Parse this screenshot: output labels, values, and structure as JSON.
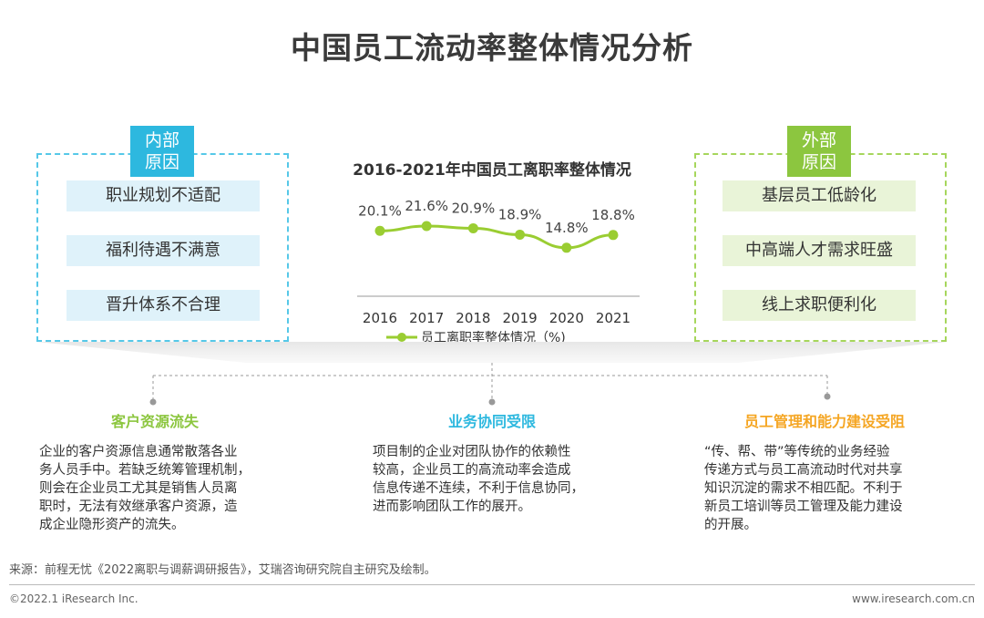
{
  "page": {
    "title": "中国员工流动率整体情况分析"
  },
  "left_panel": {
    "tag": [
      "内部",
      "原因"
    ],
    "items": [
      "职业规划不适配",
      "福利待遇不满意",
      "晋升体系不合理"
    ]
  },
  "right_panel": {
    "tag": [
      "外部",
      "原因"
    ],
    "items": [
      "基层员工低龄化",
      "中高端人才需求旺盛",
      "线上求职便利化"
    ]
  },
  "chart_data": {
    "type": "line",
    "title": "2016-2021年中国员工离职率整体情况",
    "categories": [
      "2016",
      "2017",
      "2018",
      "2019",
      "2020",
      "2021"
    ],
    "series": [
      {
        "name": "员工离职率整体情况（%)",
        "values": [
          20.1,
          21.6,
          20.9,
          18.9,
          14.8,
          18.8
        ]
      }
    ],
    "data_labels": [
      "20.1%",
      "21.6%",
      "20.9%",
      "18.9%",
      "14.8%",
      "18.8%"
    ],
    "xlabel": "",
    "ylabel": "",
    "ylim": [
      0,
      30
    ],
    "legend": "bottom",
    "color": "#9acd32"
  },
  "sections": [
    {
      "heading": "客户资源流失",
      "lines": [
        "企业的客户资源信息通常散落各业",
        "务人员手中。若缺乏统筹管理机制，",
        "则会在企业员工尤其是销售人员离",
        "职时，无法有效继承客户资源，造",
        "成企业隐形资产的流失。"
      ]
    },
    {
      "heading": "业务协同受限",
      "lines": [
        "项目制的企业对团队协作的依赖性",
        "较高，企业员工的高流动率会造成",
        "信息传递不连续，不利于信息协同，",
        "进而影响团队工作的展开。"
      ]
    },
    {
      "heading": "员工管理和能力建设受阻",
      "lines": [
        "“传、帮、带”等传统的业务经验",
        "传递方式与员工高流动时代对共享",
        "知识沉淀的需求不相匹配。不利于",
        "新员工培训等员工管理及能力建设",
        "的开展。"
      ]
    }
  ],
  "footer": {
    "source": "来源：前程无忧《2022离职与调薪调研报告》，艾瑞咨询研究院自主研究及绘制。",
    "copyright": "©2022.1 iResearch Inc.",
    "url": "www.iresearch.com.cn"
  },
  "colors": {
    "blue": "#2db8df",
    "green": "#8cc63f",
    "orange": "#f5a623"
  }
}
